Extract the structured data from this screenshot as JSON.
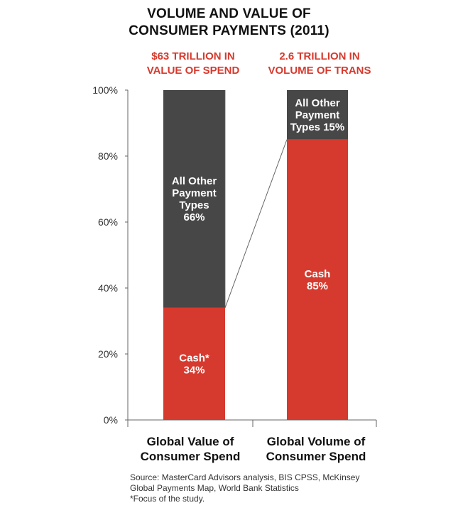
{
  "title": {
    "line1": "VOLUME AND VALUE OF",
    "line2": "CONSUMER PAYMENTS (2011)"
  },
  "subheads": {
    "left": {
      "line1": "$63 TRILLION IN",
      "line2": "VALUE OF SPEND"
    },
    "right": {
      "line1": "2.6 TRILLION IN",
      "line2": "VOLUME OF TRANS"
    }
  },
  "colors": {
    "cash": "#d63a2e",
    "other": "#474747",
    "subhead": "#d63a2e",
    "axis": "#666666"
  },
  "chart_data": {
    "type": "bar",
    "stacked": true,
    "y_ticks": [
      "0%",
      "20%",
      "40%",
      "60%",
      "80%",
      "100%"
    ],
    "ylim": [
      0,
      100
    ],
    "categories": [
      {
        "line1": "Global Value of",
        "line2": "Consumer Spend"
      },
      {
        "line1": "Global Volume of",
        "line2": "Consumer Spend"
      }
    ],
    "series": [
      {
        "key": "cash",
        "values": [
          34,
          85
        ],
        "labels": [
          [
            "Cash*",
            "34%"
          ],
          [
            "Cash",
            "85%"
          ]
        ]
      },
      {
        "key": "other",
        "values": [
          66,
          15
        ],
        "labels": [
          [
            "All Other",
            "Payment",
            "Types",
            "66%"
          ],
          [
            "All Other",
            "Payment",
            "Types 15%"
          ]
        ]
      }
    ],
    "connector": true
  },
  "source": {
    "line1": "Source: MasterCard Advisors analysis, BIS CPSS, McKinsey",
    "line2": "Global Payments Map, World Bank Statistics",
    "line3": "*Focus of the study."
  }
}
